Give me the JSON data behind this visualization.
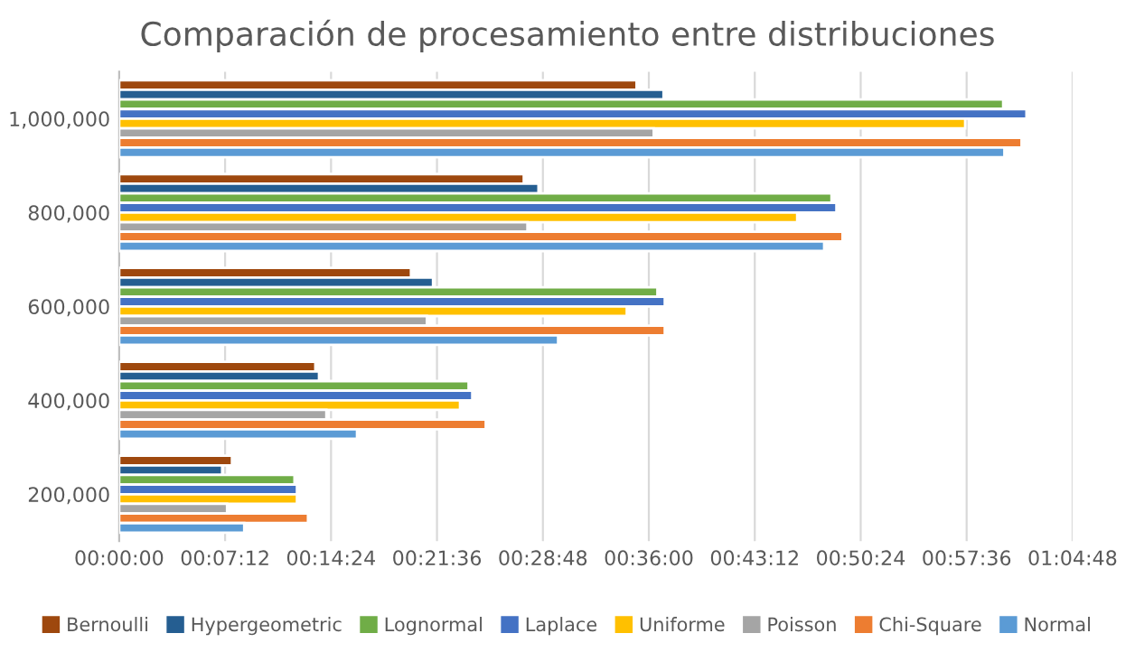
{
  "chart_data": {
    "type": "bar",
    "orientation": "horizontal",
    "title": "Comparación de procesamiento entre distribuciones",
    "categories": [
      "1,000,000",
      "800,000",
      "600,000",
      "400,000",
      "200,000"
    ],
    "series": [
      {
        "name": "Bernoulli",
        "color": "#9e480e",
        "values": [
          2110,
          1650,
          1190,
          800,
          460
        ]
      },
      {
        "name": "Hypergeometric",
        "color": "#255e91",
        "values": [
          2220,
          1710,
          1280,
          815,
          420
        ]
      },
      {
        "name": "Lognormal",
        "color": "#70ad47",
        "values": [
          3605,
          2905,
          2195,
          1425,
          715
        ]
      },
      {
        "name": "Laplace",
        "color": "#4472c4",
        "values": [
          3700,
          2925,
          2225,
          1440,
          725
        ]
      },
      {
        "name": "Uniforme",
        "color": "#ffc000",
        "values": [
          3450,
          2765,
          2070,
          1390,
          725
        ]
      },
      {
        "name": "Poisson",
        "color": "#a5a5a5",
        "values": [
          2180,
          1665,
          1255,
          845,
          440
        ]
      },
      {
        "name": "Chi-Square",
        "color": "#ed7d31",
        "values": [
          3680,
          2950,
          2225,
          1495,
          770
        ]
      },
      {
        "name": "Normal",
        "color": "#5b9bd5",
        "values": [
          3610,
          2875,
          1790,
          970,
          510
        ]
      }
    ],
    "xlim": [
      0,
      3888
    ],
    "xticks": [
      {
        "value": 0,
        "label": "00:00:00"
      },
      {
        "value": 432,
        "label": "00:07:12"
      },
      {
        "value": 864,
        "label": "00:14:24"
      },
      {
        "value": 1296,
        "label": "00:21:36"
      },
      {
        "value": 1728,
        "label": "00:28:48"
      },
      {
        "value": 2160,
        "label": "00:36:00"
      },
      {
        "value": 2592,
        "label": "00:43:12"
      },
      {
        "value": 3024,
        "label": "00:50:24"
      },
      {
        "value": 3456,
        "label": "00:57:36"
      },
      {
        "value": 3888,
        "label": "01:04:48"
      }
    ],
    "grid": "x",
    "legend": "bottom"
  }
}
